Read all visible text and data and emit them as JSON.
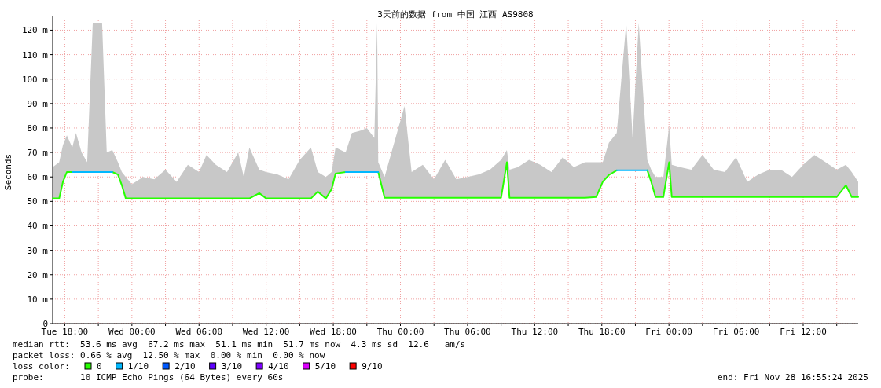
{
  "chart_data": {
    "type": "line",
    "title": "3天前的数据 from 中国 江西 AS9808",
    "ylabel": "Seconds",
    "legend_title": "loss color:",
    "legend": "bottom",
    "grid": true,
    "xlim": [
      "2025-11-25T16:55",
      "2025-11-28T16:55"
    ],
    "xticks": [
      {
        "value": "2025-11-25T18:00",
        "label": "Tue 18:00"
      },
      {
        "value": "2025-11-25T21:00",
        "label": null
      },
      {
        "value": "2025-11-26T00:00",
        "label": "Wed 00:00"
      },
      {
        "value": "2025-11-26T03:00",
        "label": null
      },
      {
        "value": "2025-11-26T06:00",
        "label": "Wed 06:00"
      },
      {
        "value": "2025-11-26T09:00",
        "label": null
      },
      {
        "value": "2025-11-26T12:00",
        "label": "Wed 12:00"
      },
      {
        "value": "2025-11-26T15:00",
        "label": null
      },
      {
        "value": "2025-11-26T18:00",
        "label": "Wed 18:00"
      },
      {
        "value": "2025-11-26T21:00",
        "label": null
      },
      {
        "value": "2025-11-27T00:00",
        "label": "Thu 00:00"
      },
      {
        "value": "2025-11-27T03:00",
        "label": null
      },
      {
        "value": "2025-11-27T06:00",
        "label": "Thu 06:00"
      },
      {
        "value": "2025-11-27T09:00",
        "label": null
      },
      {
        "value": "2025-11-27T12:00",
        "label": "Thu 12:00"
      },
      {
        "value": "2025-11-27T15:00",
        "label": null
      },
      {
        "value": "2025-11-27T18:00",
        "label": "Thu 18:00"
      },
      {
        "value": "2025-11-27T21:00",
        "label": null
      },
      {
        "value": "2025-11-28T00:00",
        "label": "Fri 00:00"
      },
      {
        "value": "2025-11-28T03:00",
        "label": null
      },
      {
        "value": "2025-11-28T06:00",
        "label": "Fri 06:00"
      },
      {
        "value": "2025-11-28T09:00",
        "label": null
      },
      {
        "value": "2025-11-28T12:00",
        "label": "Fri 12:00"
      },
      {
        "value": "2025-11-28T15:00",
        "label": null
      }
    ],
    "ylim": [
      0,
      124
    ],
    "yticks": [
      0,
      {
        "value": 10,
        "label": "10 m"
      },
      {
        "value": 20,
        "label": "20 m"
      },
      {
        "value": 30,
        "label": "30 m"
      },
      {
        "value": 40,
        "label": "40 m"
      },
      {
        "value": 50,
        "label": "50 m"
      },
      {
        "value": 60,
        "label": "60 m"
      },
      {
        "value": 70,
        "label": "70 m"
      },
      {
        "value": 80,
        "label": "80 m"
      },
      {
        "value": 90,
        "label": "90 m"
      },
      {
        "value": 100,
        "label": "100 m"
      },
      {
        "value": 110,
        "label": "110 m"
      },
      {
        "value": 120,
        "label": "120 m"
      }
    ],
    "x": [
      "2025-11-25T16:55",
      "2025-11-25T17:30",
      "2025-11-25T17:50",
      "2025-11-25T18:11",
      "2025-11-25T18:40",
      "2025-11-25T19:00",
      "2025-11-25T19:30",
      "2025-11-25T20:00",
      "2025-11-25T20:30",
      "2025-11-25T21:00",
      "2025-11-25T21:20",
      "2025-11-25T21:45",
      "2025-11-25T22:15",
      "2025-11-25T22:45",
      "2025-11-25T23:06",
      "2025-11-25T23:27",
      "2025-11-26T00:00",
      "2025-11-26T01:00",
      "2025-11-26T02:00",
      "2025-11-26T03:00",
      "2025-11-26T04:00",
      "2025-11-26T05:00",
      "2025-11-26T06:00",
      "2025-11-26T06:40",
      "2025-11-26T07:30",
      "2025-11-26T08:30",
      "2025-11-26T09:30",
      "2025-11-26T10:00",
      "2025-11-26T10:30",
      "2025-11-26T11:23",
      "2025-11-26T12:00",
      "2025-11-26T13:00",
      "2025-11-26T14:00",
      "2025-11-26T15:00",
      "2025-11-26T16:00",
      "2025-11-26T16:37",
      "2025-11-26T17:20",
      "2025-11-26T17:51",
      "2025-11-26T18:12",
      "2025-11-26T19:06",
      "2025-11-26T19:40",
      "2025-11-26T20:30",
      "2025-11-26T21:00",
      "2025-11-26T21:40",
      "2025-11-26T21:55",
      "2025-11-26T22:01",
      "2025-11-26T22:35",
      "2025-11-27T00:22",
      "2025-11-27T01:00",
      "2025-11-27T02:00",
      "2025-11-27T03:00",
      "2025-11-27T04:00",
      "2025-11-27T05:00",
      "2025-11-27T06:00",
      "2025-11-27T07:00",
      "2025-11-27T08:00",
      "2025-11-27T09:00",
      "2025-11-27T09:31",
      "2025-11-27T09:45",
      "2025-11-27T10:30",
      "2025-11-27T11:30",
      "2025-11-27T12:30",
      "2025-11-27T13:30",
      "2025-11-27T14:30",
      "2025-11-27T15:30",
      "2025-11-27T16:30",
      "2025-11-27T17:30",
      "2025-11-27T18:05",
      "2025-11-27T18:38",
      "2025-11-27T19:20",
      "2025-11-27T20:11",
      "2025-11-27T20:45",
      "2025-11-27T21:18",
      "2025-11-27T22:04",
      "2025-11-27T22:25",
      "2025-11-27T22:48",
      "2025-11-27T23:30",
      "2025-11-28T00:01",
      "2025-11-28T00:15",
      "2025-11-28T01:00",
      "2025-11-28T02:00",
      "2025-11-28T03:00",
      "2025-11-28T04:00",
      "2025-11-28T05:00",
      "2025-11-28T06:00",
      "2025-11-28T07:00",
      "2025-11-28T08:00",
      "2025-11-28T09:00",
      "2025-11-28T10:00",
      "2025-11-28T11:00",
      "2025-11-28T12:00",
      "2025-11-28T13:00",
      "2025-11-28T14:00",
      "2025-11-28T15:00",
      "2025-11-28T15:49",
      "2025-11-28T16:20",
      "2025-11-28T16:55"
    ],
    "series": [
      {
        "name": "0",
        "color": "#26ff00",
        "values": [
          51.2,
          51.2,
          58,
          62,
          62,
          null,
          null,
          null,
          null,
          null,
          null,
          null,
          62,
          61,
          56.6,
          51.2,
          51.2,
          51.2,
          51.2,
          51.2,
          51.2,
          51.2,
          51.2,
          51.2,
          51.2,
          51.2,
          51.2,
          51.2,
          51.2,
          53.4,
          51.2,
          51.2,
          51.2,
          51.2,
          51.2,
          54,
          51.2,
          55,
          61.4,
          62,
          null,
          null,
          null,
          null,
          null,
          62,
          51.5,
          51.5,
          51.5,
          51.5,
          51.5,
          51.5,
          51.5,
          51.5,
          51.5,
          51.5,
          51.5,
          66,
          51.5,
          51.5,
          51.5,
          51.5,
          51.5,
          51.5,
          51.5,
          51.5,
          51.8,
          58,
          60.8,
          62.7,
          null,
          null,
          null,
          62.7,
          58,
          51.8,
          51.8,
          66,
          51.8,
          51.8,
          51.8,
          51.8,
          51.8,
          51.8,
          51.8,
          51.8,
          51.8,
          51.8,
          51.8,
          51.8,
          51.8,
          51.8,
          51.8,
          51.8,
          56.6,
          51.8,
          51.8
        ],
        "lower": [
          51.2,
          51.2,
          58,
          62,
          62,
          62,
          62,
          62,
          62,
          62,
          62,
          62,
          62,
          61,
          56.6,
          51.2,
          51.2,
          51.2,
          51.2,
          51.2,
          51.2,
          51.2,
          51.2,
          51.2,
          51.2,
          51.2,
          51.2,
          51.2,
          51.2,
          53.4,
          51.2,
          51.2,
          51.2,
          51.2,
          51.2,
          54,
          51.2,
          55,
          61.4,
          62,
          62,
          62,
          62,
          62,
          62,
          62,
          51.5,
          51.5,
          51.5,
          51.5,
          51.5,
          51.5,
          51.5,
          51.5,
          51.5,
          51.5,
          51.5,
          66,
          51.5,
          51.5,
          51.5,
          51.5,
          51.5,
          51.5,
          51.5,
          51.5,
          51.8,
          58,
          60.8,
          62.7,
          62.7,
          62.7,
          62.7,
          62.7,
          58,
          51.8,
          51.8,
          66,
          51.8,
          51.8,
          51.8,
          51.8,
          51.8,
          51.8,
          51.8,
          51.8,
          51.8,
          51.8,
          51.8,
          51.8,
          51.8,
          51.8,
          51.8,
          51.8,
          56.6,
          51.8,
          51.8
        ],
        "upper": [
          64,
          66,
          73,
          77,
          72,
          78,
          70,
          66,
          123,
          123,
          123,
          70,
          71,
          66,
          62,
          60,
          57,
          60,
          59,
          63,
          58,
          65,
          62,
          69,
          65,
          62,
          70,
          60,
          72,
          63,
          62,
          61,
          59,
          67,
          72,
          62,
          60,
          62,
          72,
          70,
          78,
          79,
          80,
          76,
          123,
          66,
          60,
          89,
          62,
          65,
          59,
          67,
          59,
          60,
          61,
          63,
          67,
          71,
          63,
          64,
          67,
          65,
          62,
          68,
          64,
          66,
          66,
          66,
          74,
          78,
          123,
          76,
          123,
          67,
          63,
          60,
          60,
          81,
          65,
          64,
          63,
          69,
          63,
          62,
          68,
          58,
          61,
          63,
          63,
          60,
          65,
          69,
          66,
          63,
          65,
          62,
          58
        ]
      },
      {
        "name": "1/10",
        "color": "#00b8ff",
        "values": [
          null,
          null,
          null,
          null,
          62,
          62,
          62,
          62,
          62,
          62,
          62,
          62,
          62,
          null,
          null,
          null,
          null,
          null,
          null,
          null,
          null,
          null,
          null,
          null,
          null,
          null,
          null,
          null,
          null,
          null,
          null,
          null,
          null,
          null,
          null,
          null,
          null,
          null,
          null,
          62,
          62,
          62,
          62,
          62,
          62,
          62,
          null,
          null,
          null,
          null,
          null,
          null,
          null,
          null,
          null,
          null,
          null,
          null,
          null,
          null,
          null,
          null,
          null,
          null,
          null,
          null,
          null,
          null,
          null,
          62.7,
          62.7,
          62.7,
          62.7,
          62.7,
          null,
          null,
          null,
          null,
          null,
          null,
          null,
          null,
          null,
          null,
          null,
          null,
          null,
          null,
          null,
          null,
          null,
          null,
          null,
          null,
          null,
          null,
          null
        ]
      },
      {
        "name": "2/10",
        "color": "#0059ff",
        "values": [
          null,
          null,
          null,
          null,
          null,
          null,
          null,
          null,
          null,
          null,
          null,
          null,
          null,
          null,
          null,
          null,
          null,
          null,
          null,
          null,
          null,
          null,
          null,
          null,
          null,
          null,
          null,
          null,
          null,
          null,
          null,
          null,
          null,
          null,
          null,
          null,
          null,
          null,
          null,
          null,
          null,
          null,
          null,
          null,
          null,
          null,
          null,
          null,
          null,
          null,
          null,
          null,
          null,
          null,
          null,
          null,
          null,
          null,
          null,
          null,
          null,
          null,
          null,
          null,
          null,
          null,
          null,
          null,
          null,
          null,
          null,
          null,
          null,
          null,
          null,
          null,
          null,
          null,
          null,
          null,
          null,
          null,
          null,
          null,
          null,
          null,
          null,
          null,
          null,
          null,
          null,
          null,
          null,
          null,
          null,
          null,
          null
        ]
      },
      {
        "name": "3/10",
        "color": "#5e00ff",
        "values": [
          null,
          null,
          null,
          null,
          null,
          null,
          null,
          null,
          null,
          null,
          null,
          null,
          null,
          null,
          null,
          null,
          null,
          null,
          null,
          null,
          null,
          null,
          null,
          null,
          null,
          null,
          null,
          null,
          null,
          null,
          null,
          null,
          null,
          null,
          null,
          null,
          null,
          null,
          null,
          null,
          null,
          null,
          null,
          null,
          null,
          null,
          null,
          null,
          null,
          null,
          null,
          null,
          null,
          null,
          null,
          null,
          null,
          null,
          null,
          null,
          null,
          null,
          null,
          null,
          null,
          null,
          null,
          null,
          null,
          null,
          null,
          null,
          null,
          null,
          null,
          null,
          null,
          null,
          null,
          null,
          null,
          null,
          null,
          null,
          null,
          null,
          null,
          null,
          null,
          null,
          null,
          null,
          null,
          null,
          null,
          null,
          null
        ]
      },
      {
        "name": "4/10",
        "color": "#7e00ff",
        "values": [
          null,
          null,
          null,
          null,
          null,
          null,
          null,
          null,
          null,
          null,
          null,
          null,
          null,
          null,
          null,
          null,
          null,
          null,
          null,
          null,
          null,
          null,
          null,
          null,
          null,
          null,
          null,
          null,
          null,
          null,
          null,
          null,
          null,
          null,
          null,
          null,
          null,
          null,
          null,
          null,
          null,
          null,
          null,
          null,
          null,
          null,
          null,
          null,
          null,
          null,
          null,
          null,
          null,
          null,
          null,
          null,
          null,
          null,
          null,
          null,
          null,
          null,
          null,
          null,
          null,
          null,
          null,
          null,
          null,
          null,
          null,
          null,
          null,
          null,
          null,
          null,
          null,
          null,
          null,
          null,
          null,
          null,
          null,
          null,
          null,
          null,
          null,
          null,
          null,
          null,
          null,
          null,
          null,
          null,
          null,
          null,
          null
        ]
      },
      {
        "name": "5/10",
        "color": "#dd00ff",
        "values": [
          null,
          null,
          null,
          null,
          null,
          null,
          null,
          null,
          null,
          null,
          null,
          null,
          null,
          null,
          null,
          null,
          null,
          null,
          null,
          null,
          null,
          null,
          null,
          null,
          null,
          null,
          null,
          null,
          null,
          null,
          null,
          null,
          null,
          null,
          null,
          null,
          null,
          null,
          null,
          null,
          null,
          null,
          null,
          null,
          null,
          null,
          null,
          null,
          null,
          null,
          null,
          null,
          null,
          null,
          null,
          null,
          null,
          null,
          null,
          null,
          null,
          null,
          null,
          null,
          null,
          null,
          null,
          null,
          null,
          null,
          null,
          null,
          null,
          null,
          null,
          null,
          null,
          null,
          null,
          null,
          null,
          null,
          null,
          null,
          null,
          null,
          null,
          null,
          null,
          null,
          null,
          null,
          null,
          null,
          null,
          null,
          null
        ]
      },
      {
        "name": "9/10",
        "color": "#ff0000",
        "values": [
          null,
          null,
          null,
          null,
          null,
          null,
          null,
          null,
          null,
          null,
          null,
          null,
          null,
          null,
          null,
          null,
          null,
          null,
          null,
          null,
          null,
          null,
          null,
          null,
          null,
          null,
          null,
          null,
          null,
          null,
          null,
          null,
          null,
          null,
          null,
          null,
          null,
          null,
          null,
          null,
          null,
          null,
          null,
          null,
          null,
          null,
          null,
          null,
          null,
          null,
          null,
          null,
          null,
          null,
          null,
          null,
          null,
          null,
          null,
          null,
          null,
          null,
          null,
          null,
          null,
          null,
          null,
          null,
          null,
          null,
          null,
          null,
          null,
          null,
          null,
          null,
          null,
          null,
          null,
          null,
          null,
          null,
          null,
          null,
          null,
          null,
          null,
          null,
          null,
          null,
          null,
          null,
          null,
          null,
          null,
          null,
          null
        ]
      }
    ],
    "annotations": [
      "median rtt:  53.6 ms avg  67.2 ms max  51.1 ms min  51.7 ms now  4.3 ms sd  12.6   am/s",
      "packet loss: 0.66 % avg  12.50 % max  0.00 % min  0.00 % now",
      "probe:       10 ICMP Echo Pings (64 Bytes) every 60s",
      "end: Fri Nov 28 16:55:24 2025"
    ]
  }
}
